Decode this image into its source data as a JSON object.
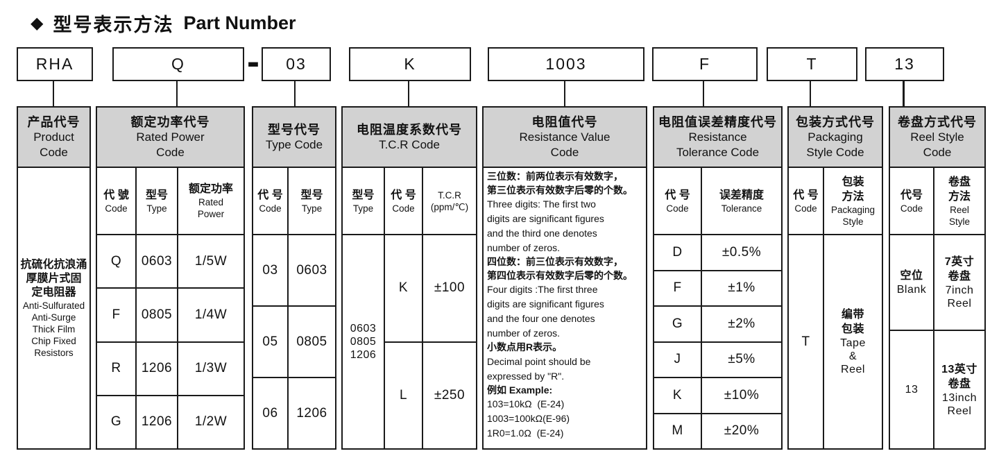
{
  "title": {
    "diamond": "◆",
    "zh": "型号表示方法",
    "en": "Part Number"
  },
  "part": {
    "separator": "-",
    "segments": [
      {
        "value": "RHA"
      },
      {
        "value": "Q"
      },
      {
        "value": "03"
      },
      {
        "value": "K"
      },
      {
        "value": "1003"
      },
      {
        "value": "F"
      },
      {
        "value": "T"
      },
      {
        "value": "13"
      }
    ]
  },
  "columns": {
    "product": {
      "header": [
        {
          "t": "产品代号",
          "c": "zh"
        },
        "Product",
        "Code"
      ],
      "body": [
        {
          "t": "抗硫化抗浪涌",
          "c": "zh"
        },
        {
          "t": "厚膜片式固",
          "c": "zh"
        },
        {
          "t": "定电阻器",
          "c": "zh"
        },
        "Anti-Sulfurated",
        "Anti-Surge",
        "Thick Film",
        "Chip Fixed",
        "Resistors"
      ]
    },
    "rated_power": {
      "header": [
        {
          "t": "额定功率代号",
          "c": "zh"
        },
        "Rated Power",
        "Code"
      ],
      "sub": [
        [
          {
            "t": "代 號",
            "c": "zh"
          },
          "Code"
        ],
        [
          {
            "t": "型号",
            "c": "zh"
          },
          "Type"
        ],
        [
          {
            "t": "额定功率",
            "c": "zh"
          },
          "Rated",
          "Power"
        ]
      ],
      "rows": [
        [
          "Q",
          "0603",
          "1/5W"
        ],
        [
          "F",
          "0805",
          "1/4W"
        ],
        [
          "R",
          "1206",
          "1/3W"
        ],
        [
          "G",
          "1206",
          "1/2W"
        ]
      ]
    },
    "type_code": {
      "header": [
        {
          "t": "型号代号",
          "c": "zh"
        },
        "Type Code"
      ],
      "sub": [
        [
          {
            "t": "代 号",
            "c": "zh"
          },
          "Code"
        ],
        [
          {
            "t": "型号",
            "c": "zh"
          },
          "Type"
        ]
      ],
      "rows": [
        [
          "03",
          "0603"
        ],
        [
          "05",
          "0805"
        ],
        [
          "06",
          "1206"
        ]
      ]
    },
    "tcr": {
      "header": [
        {
          "t": "电阻温度系数代号",
          "c": "zh"
        },
        "T.C.R Code"
      ],
      "sub": [
        [
          {
            "t": "型号",
            "c": "zh"
          },
          "Type"
        ],
        [
          {
            "t": "代 号",
            "c": "zh"
          },
          "Code"
        ],
        [
          "T.C.R",
          "(ppm/℃)"
        ]
      ],
      "types": [
        "0603",
        "0805",
        "1206"
      ],
      "rows": [
        [
          "K",
          "±100"
        ],
        [
          "L",
          "±250"
        ]
      ]
    },
    "resistance_value": {
      "header": [
        {
          "t": "电阻值代号",
          "c": "zh"
        },
        "Resistance Value",
        "Code"
      ],
      "body": [
        {
          "t": "三位数：前两位表示有效数字，",
          "c": "zh"
        },
        {
          "t": "第三位表示有效数字后零的个数。",
          "c": "zh"
        },
        "Three digits: The first two",
        "digits are significant figures",
        "and the third one denotes",
        "number of zeros.",
        {
          "t": "四位数：前三位表示有效数字，",
          "c": "zh"
        },
        {
          "t": "第四位表示有效数字后零的个数。",
          "c": "zh"
        },
        "Four digits :The first three",
        "digits are significant figures",
        "and the four one denotes",
        "number of zeros.",
        {
          "t": "小数点用R表示。",
          "c": "zh"
        },
        "Decimal point should be",
        "expressed by \"R\".",
        {
          "t": "例如 Example:",
          "c": "zh"
        },
        "103=10kΩ  (E-24)",
        "1003=100kΩ(E-96)",
        "1R0=1.0Ω  (E-24)"
      ]
    },
    "tolerance": {
      "header": [
        {
          "t": "电阻值误差精度代号",
          "c": "zh"
        },
        "Resistance",
        "Tolerance Code"
      ],
      "sub": [
        [
          {
            "t": "代 号",
            "c": "zh"
          },
          "Code"
        ],
        [
          {
            "t": "误差精度",
            "c": "zh"
          },
          "Tolerance"
        ]
      ],
      "rows": [
        [
          "D",
          "±0.5%"
        ],
        [
          "F",
          "±1%"
        ],
        [
          "G",
          "±2%"
        ],
        [
          "J",
          "±5%"
        ],
        [
          "K",
          "±10%"
        ],
        [
          "M",
          "±20%"
        ]
      ]
    },
    "packaging": {
      "header": [
        {
          "t": "包装方式代号",
          "c": "zh"
        },
        "Packaging",
        "Style Code"
      ],
      "sub": [
        [
          {
            "t": "代 号",
            "c": "zh"
          },
          "Code"
        ],
        [
          {
            "t": "包装",
            "c": "zh"
          },
          {
            "t": "方法",
            "c": "zh"
          },
          "Packaging",
          "Style"
        ]
      ],
      "code": "T",
      "style": [
        {
          "t": "编带",
          "c": "zh"
        },
        {
          "t": "包装",
          "c": "zh"
        },
        "Tape",
        "&",
        "Reel"
      ]
    },
    "reel": {
      "header": [
        {
          "t": "卷盘方式代号",
          "c": "zh"
        },
        "Reel Style",
        "Code"
      ],
      "sub": [
        [
          {
            "t": "代号",
            "c": "zh"
          },
          "Code"
        ],
        [
          {
            "t": "卷盘",
            "c": "zh"
          },
          {
            "t": "方法",
            "c": "zh"
          },
          "Reel",
          "Style"
        ]
      ],
      "rows": [
        {
          "code": [
            {
              "t": "空位",
              "c": "zh"
            },
            "Blank"
          ],
          "style": [
            {
              "t": "7英寸",
              "c": "zh"
            },
            {
              "t": "卷盘",
              "c": "zh"
            },
            "7inch",
            "Reel"
          ]
        },
        {
          "code": [
            "13"
          ],
          "style": [
            {
              "t": "13英寸",
              "c": "zh"
            },
            {
              "t": "卷盘",
              "c": "zh"
            },
            "13inch",
            "Reel"
          ]
        }
      ]
    }
  }
}
